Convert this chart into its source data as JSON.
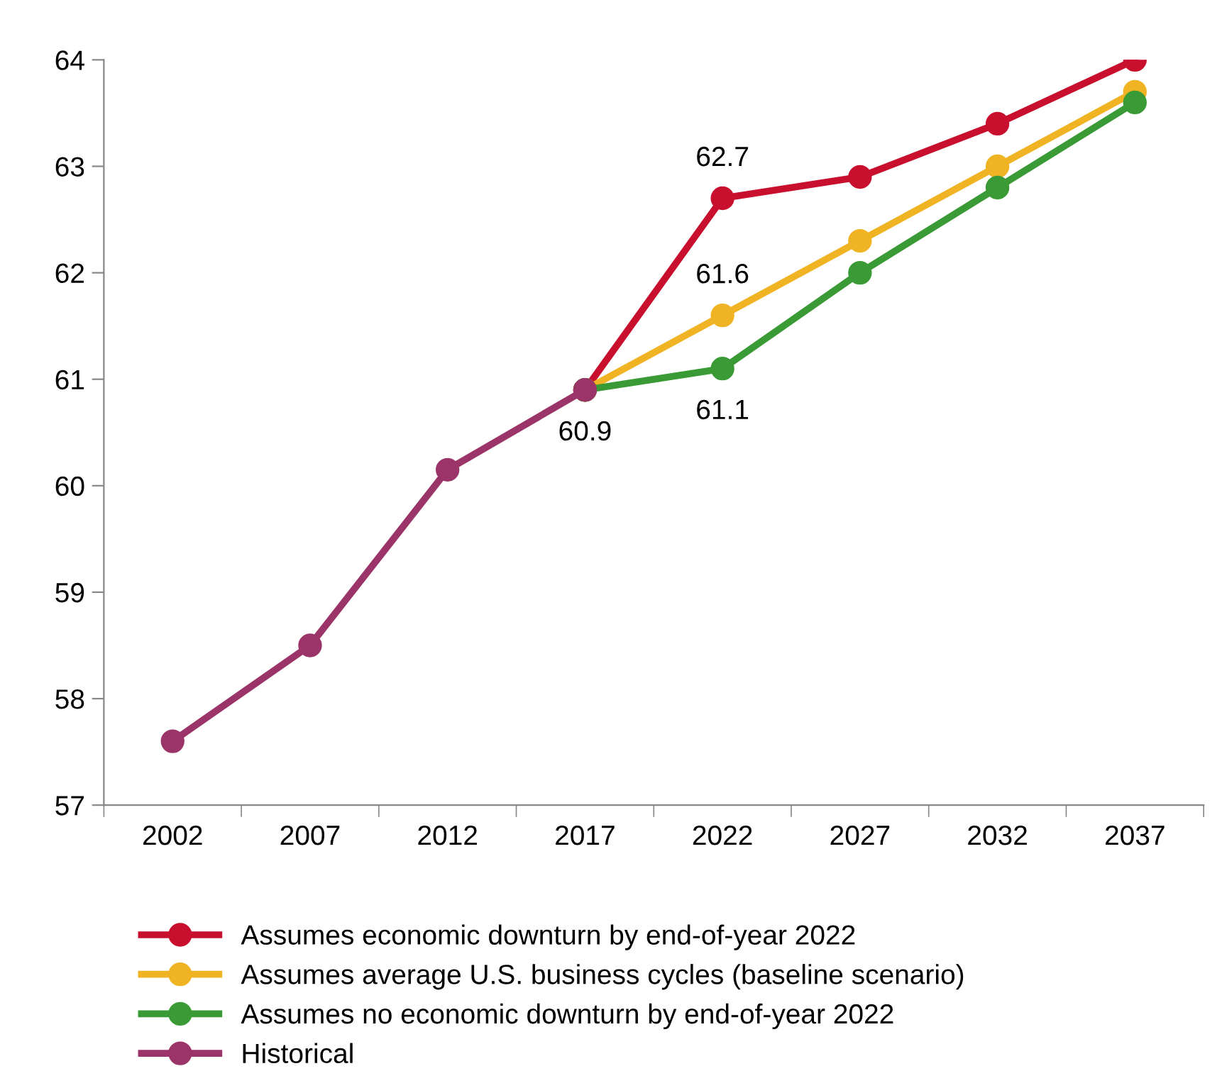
{
  "chart_data": {
    "type": "line",
    "categories": [
      "2002",
      "2007",
      "2012",
      "2017",
      "2022",
      "2027",
      "2032",
      "2037"
    ],
    "series": [
      {
        "name": "Assumes economic downturn by end-of-year 2022",
        "color": "#c8102e",
        "values": [
          null,
          null,
          null,
          60.9,
          62.7,
          62.9,
          63.4,
          64.0
        ]
      },
      {
        "name": "Assumes average U.S. business cycles (baseline scenario)",
        "color": "#f0b323",
        "values": [
          null,
          null,
          null,
          60.9,
          61.6,
          62.3,
          63.0,
          63.7
        ]
      },
      {
        "name": "Assumes no economic downturn by end-of-year 2022",
        "color": "#3a9a35",
        "values": [
          null,
          null,
          null,
          60.9,
          61.1,
          62.0,
          62.8,
          63.6
        ]
      },
      {
        "name": "Historical",
        "color": "#9b3468",
        "values": [
          57.6,
          58.5,
          60.15,
          60.9,
          null,
          null,
          null,
          null
        ]
      }
    ],
    "annotations": [
      {
        "text": "62.7",
        "x": "2022",
        "y": 62.7
      },
      {
        "text": "61.6",
        "x": "2022",
        "y": 61.6
      },
      {
        "text": "61.1",
        "x": "2022",
        "y": 61.1
      },
      {
        "text": "60.9",
        "x": "2017",
        "y": 60.9
      }
    ],
    "ylim": [
      57,
      64
    ],
    "yticks": [
      57,
      58,
      59,
      60,
      61,
      62,
      63,
      64
    ],
    "grid": false,
    "legend": "bottom",
    "marker": "circle",
    "line_style": "solid"
  }
}
